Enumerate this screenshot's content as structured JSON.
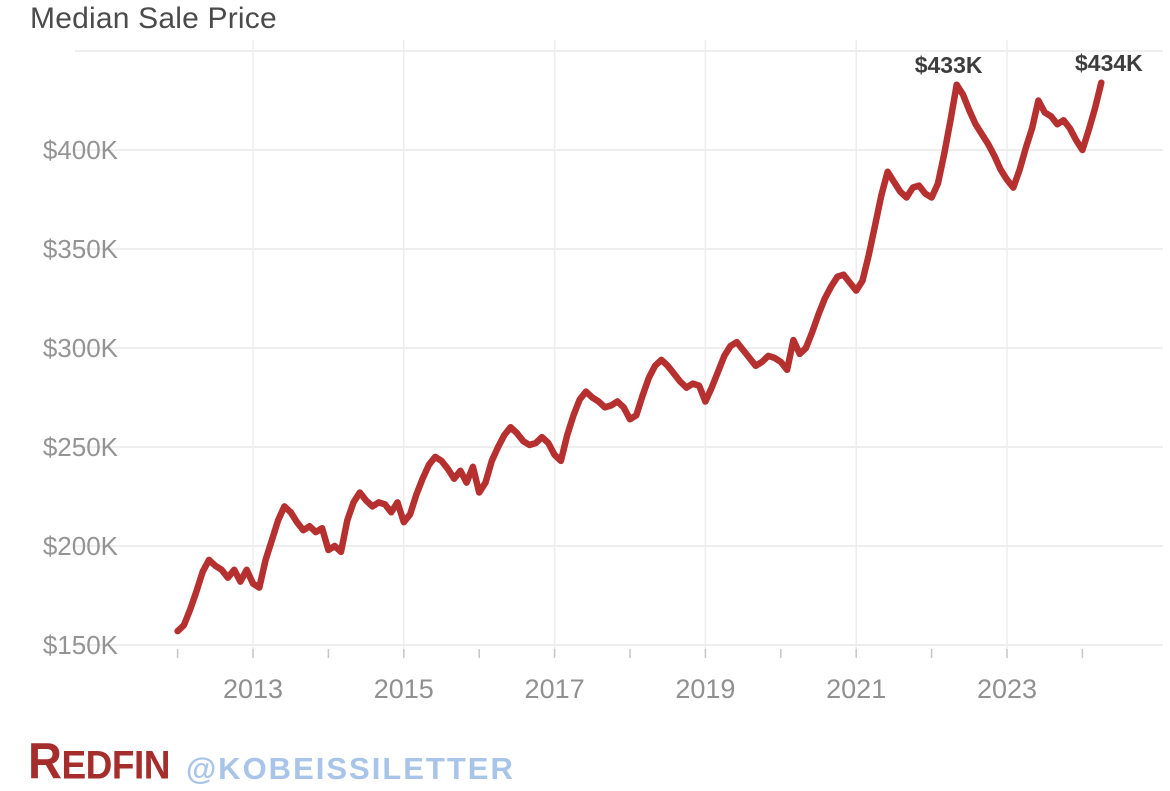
{
  "chart_data": {
    "type": "line",
    "title": "Median Sale Price",
    "series_name": "Median Sale Price",
    "unit": "USD thousands",
    "frequency": "monthly",
    "x_start": "2012-01",
    "x_end": "2024-04",
    "values": [
      157,
      160,
      168,
      177,
      187,
      193,
      190,
      188,
      184,
      188,
      182,
      188,
      181,
      179,
      193,
      203,
      213,
      220,
      217,
      212,
      208,
      210,
      207,
      209,
      198,
      200,
      197,
      213,
      222,
      227,
      223,
      220,
      222,
      221,
      217,
      222,
      212,
      216,
      226,
      234,
      241,
      245,
      243,
      239,
      234,
      238,
      232,
      240,
      227,
      232,
      243,
      250,
      256,
      260,
      257,
      253,
      251,
      252,
      255,
      252,
      246,
      243,
      256,
      266,
      274,
      278,
      275,
      273,
      270,
      271,
      273,
      270,
      264,
      266,
      276,
      285,
      291,
      294,
      291,
      287,
      283,
      280,
      282,
      281,
      273,
      280,
      288,
      296,
      301,
      303,
      299,
      295,
      291,
      293,
      296,
      295,
      293,
      289,
      304,
      297,
      300,
      308,
      317,
      325,
      331,
      336,
      337,
      333,
      329,
      334,
      347,
      362,
      377,
      389,
      384,
      379,
      376,
      381,
      382,
      378,
      376,
      383,
      398,
      415,
      433,
      428,
      420,
      413,
      408,
      403,
      397,
      390,
      385,
      381,
      390,
      401,
      411,
      425,
      419,
      417,
      413,
      415,
      411,
      405,
      400,
      410,
      421,
      434
    ],
    "ylim": [
      150,
      450
    ],
    "grid": true,
    "legend": "none",
    "line_color": "#b5302e",
    "y_axis_labels": [
      {
        "label": "$150K",
        "value": 150
      },
      {
        "label": "$200K",
        "value": 200
      },
      {
        "label": "$250K",
        "value": 250
      },
      {
        "label": "$300K",
        "value": 300
      },
      {
        "label": "$350K",
        "value": 350
      },
      {
        "label": "$400K",
        "value": 400
      }
    ],
    "y_gridlines": [
      150,
      200,
      250,
      300,
      350,
      400,
      450
    ],
    "x_axis_labels": [
      {
        "label": "2013",
        "year": 2013
      },
      {
        "label": "2015",
        "year": 2015
      },
      {
        "label": "2017",
        "year": 2017
      },
      {
        "label": "2019",
        "year": 2019
      },
      {
        "label": "2021",
        "year": 2021
      },
      {
        "label": "2023",
        "year": 2023
      }
    ],
    "x_gridline_years": [
      2013,
      2015,
      2017,
      2019,
      2021,
      2023
    ],
    "year_ticks": [
      2012,
      2013,
      2014,
      2015,
      2016,
      2017,
      2018,
      2019,
      2020,
      2021,
      2022,
      2023,
      2024
    ],
    "annotations": [
      {
        "label": "$433K",
        "date": "2022-05",
        "value": 433
      },
      {
        "label": "$434K",
        "date": "2024-04",
        "value": 434
      }
    ]
  },
  "footer": {
    "brand": "REDFIN",
    "handle": "@KOBEISSILETTER"
  },
  "colors": {
    "line": "#b5302e",
    "grid": "#e9e9e9",
    "tick": "#c6c6c6",
    "brand_red": "#a52e2c",
    "handle_blue": "#a9c4e9",
    "title_gray": "#4b4b4b",
    "axis_gray": "#949494",
    "annotation_gray": "#3d3d3d"
  }
}
